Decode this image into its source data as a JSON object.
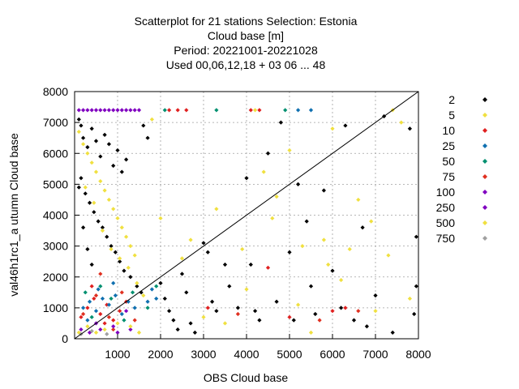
{
  "chart_data": {
    "type": "scatter",
    "title_lines": [
      "Scatterplot for   21 stations Selection: Estonia",
      "Cloud base [m]",
      "Period: 20221001-20221028",
      "Used  00,06,12,18  + 03 06 ... 48"
    ],
    "xlabel": "OBS Cloud base",
    "ylabel": "val46h1rc1_a utumn Cloud base",
    "xlim": [
      0,
      8000
    ],
    "ylim": [
      0,
      8000
    ],
    "xticks": [
      "1000",
      "2000",
      "3000",
      "4000",
      "5000",
      "6000",
      "7000",
      "8000"
    ],
    "yticks": [
      "0",
      "1000",
      "2000",
      "3000",
      "4000",
      "5000",
      "6000",
      "7000",
      "8000"
    ],
    "grid": true,
    "legend_placement": "right",
    "diagonal": [
      [
        0,
        0
      ],
      [
        8000,
        8000
      ]
    ],
    "series": [
      {
        "name": "2",
        "color": "#000000",
        "points": [
          [
            100,
            7100
          ],
          [
            150,
            6900
          ],
          [
            200,
            6500
          ],
          [
            300,
            6200
          ],
          [
            400,
            6800
          ],
          [
            500,
            6400
          ],
          [
            600,
            5900
          ],
          [
            700,
            6600
          ],
          [
            800,
            6300
          ],
          [
            900,
            5600
          ],
          [
            1000,
            6100
          ],
          [
            1100,
            5400
          ],
          [
            1200,
            5800
          ],
          [
            150,
            5200
          ],
          [
            250,
            4700
          ],
          [
            350,
            4400
          ],
          [
            450,
            4100
          ],
          [
            550,
            3800
          ],
          [
            650,
            3600
          ],
          [
            750,
            3300
          ],
          [
            850,
            3000
          ],
          [
            950,
            2800
          ],
          [
            1050,
            2500
          ],
          [
            1150,
            2200
          ],
          [
            1300,
            2000
          ],
          [
            1450,
            1700
          ],
          [
            1550,
            1500
          ],
          [
            200,
            3600
          ],
          [
            300,
            2900
          ],
          [
            400,
            2400
          ],
          [
            100,
            4900
          ],
          [
            1600,
            6900
          ],
          [
            1700,
            6500
          ],
          [
            2000,
            1800
          ],
          [
            2100,
            1300
          ],
          [
            2200,
            900
          ],
          [
            2300,
            600
          ],
          [
            2400,
            300
          ],
          [
            2500,
            2100
          ],
          [
            2600,
            1500
          ],
          [
            2700,
            500
          ],
          [
            2800,
            200
          ],
          [
            3000,
            3100
          ],
          [
            3100,
            2800
          ],
          [
            3200,
            1200
          ],
          [
            3300,
            900
          ],
          [
            3500,
            2400
          ],
          [
            3600,
            1700
          ],
          [
            3800,
            1000
          ],
          [
            4000,
            5200
          ],
          [
            4100,
            2400
          ],
          [
            4200,
            900
          ],
          [
            4300,
            600
          ],
          [
            4500,
            6000
          ],
          [
            4700,
            1200
          ],
          [
            4800,
            7000
          ],
          [
            5000,
            2800
          ],
          [
            5100,
            600
          ],
          [
            5200,
            5000
          ],
          [
            5400,
            3800
          ],
          [
            5500,
            1700
          ],
          [
            5600,
            800
          ],
          [
            5800,
            4800
          ],
          [
            6000,
            2200
          ],
          [
            6200,
            1000
          ],
          [
            6300,
            6900
          ],
          [
            6500,
            600
          ],
          [
            6700,
            3600
          ],
          [
            6800,
            400
          ],
          [
            7000,
            1400
          ],
          [
            7200,
            7200
          ],
          [
            7400,
            200
          ],
          [
            7800,
            6800
          ],
          [
            7900,
            800
          ],
          [
            7950,
            3300
          ],
          [
            7950,
            1700
          ]
        ]
      },
      {
        "name": "5",
        "color": "#f0e040",
        "points": [
          [
            100,
            6700
          ],
          [
            200,
            6300
          ],
          [
            300,
            6000
          ],
          [
            400,
            5700
          ],
          [
            500,
            5400
          ],
          [
            600,
            5100
          ],
          [
            700,
            4800
          ],
          [
            800,
            4500
          ],
          [
            900,
            4200
          ],
          [
            1000,
            3900
          ],
          [
            1100,
            3600
          ],
          [
            1200,
            3300
          ],
          [
            1300,
            3000
          ],
          [
            1400,
            2700
          ],
          [
            250,
            4900
          ],
          [
            450,
            4400
          ],
          [
            650,
            3500
          ],
          [
            850,
            2900
          ],
          [
            1050,
            2600
          ],
          [
            1250,
            2300
          ],
          [
            1450,
            1800
          ],
          [
            1600,
            1400
          ],
          [
            1800,
            7100
          ],
          [
            2000,
            3900
          ],
          [
            2500,
            2600
          ],
          [
            3000,
            700
          ],
          [
            3500,
            500
          ],
          [
            4000,
            1600
          ],
          [
            4200,
            7400
          ],
          [
            4600,
            3900
          ],
          [
            5000,
            6100
          ],
          [
            5200,
            1100
          ],
          [
            5500,
            200
          ],
          [
            5800,
            3200
          ],
          [
            6000,
            6800
          ],
          [
            6200,
            1900
          ],
          [
            6600,
            4500
          ],
          [
            7000,
            900
          ],
          [
            7400,
            7400
          ],
          [
            7600,
            7000
          ],
          [
            7800,
            1300
          ]
        ]
      },
      {
        "name": "10",
        "color": "#e02020",
        "points": [
          [
            150,
            700
          ],
          [
            300,
            1000
          ],
          [
            450,
            1300
          ],
          [
            600,
            800
          ],
          [
            750,
            1100
          ],
          [
            900,
            600
          ],
          [
            1050,
            900
          ],
          [
            1200,
            1200
          ],
          [
            400,
            1700
          ],
          [
            700,
            500
          ],
          [
            2200,
            7400
          ],
          [
            2400,
            7400
          ],
          [
            2600,
            7400
          ],
          [
            3100,
            1000
          ],
          [
            4100,
            7400
          ],
          [
            4300,
            7400
          ],
          [
            4500,
            2300
          ],
          [
            5000,
            700
          ],
          [
            6000,
            900
          ],
          [
            6300,
            1000
          ]
        ]
      },
      {
        "name": "25",
        "color": "#1070b0",
        "points": [
          [
            200,
            1000
          ],
          [
            350,
            1200
          ],
          [
            500,
            900
          ],
          [
            650,
            1300
          ],
          [
            800,
            1100
          ],
          [
            950,
            1400
          ],
          [
            1100,
            800
          ],
          [
            1250,
            1200
          ],
          [
            1400,
            1000
          ],
          [
            300,
            600
          ],
          [
            550,
            1600
          ],
          [
            900,
            1800
          ],
          [
            1700,
            1200
          ],
          [
            1800,
            1600
          ],
          [
            1900,
            1300
          ],
          [
            5200,
            7400
          ],
          [
            5500,
            7400
          ]
        ]
      },
      {
        "name": "50",
        "color": "#009070",
        "points": [
          [
            250,
            1500
          ],
          [
            400,
            700
          ],
          [
            600,
            1700
          ],
          [
            850,
            1300
          ],
          [
            1150,
            600
          ],
          [
            1350,
            1500
          ],
          [
            1700,
            1000
          ],
          [
            1900,
            1700
          ],
          [
            2100,
            7400
          ],
          [
            3300,
            7400
          ],
          [
            4900,
            7400
          ]
        ]
      },
      {
        "name": "75",
        "color": "#e03020",
        "points": [
          [
            200,
            800
          ],
          [
            500,
            1400
          ],
          [
            800,
            700
          ],
          [
            1100,
            1500
          ],
          [
            1400,
            600
          ],
          [
            600,
            2100
          ],
          [
            900,
            300
          ],
          [
            3800,
            800
          ],
          [
            5700,
            600
          ],
          [
            6600,
            900
          ]
        ]
      },
      {
        "name": "100",
        "color": "#8000c0",
        "points": [
          [
            100,
            7400
          ],
          [
            200,
            7400
          ],
          [
            300,
            7400
          ],
          [
            400,
            7400
          ],
          [
            500,
            7400
          ],
          [
            600,
            7400
          ],
          [
            700,
            7400
          ],
          [
            800,
            7400
          ],
          [
            900,
            7400
          ],
          [
            1000,
            7400
          ],
          [
            1100,
            7400
          ],
          [
            1200,
            7400
          ],
          [
            1300,
            7400
          ],
          [
            1400,
            7400
          ],
          [
            1500,
            7400
          ],
          [
            500,
            500
          ],
          [
            900,
            400
          ],
          [
            1200,
            900
          ]
        ]
      },
      {
        "name": "250",
        "color": "#8000c0",
        "points": [
          [
            150,
            300
          ],
          [
            350,
            200
          ],
          [
            600,
            300
          ],
          [
            1000,
            200
          ],
          [
            1300,
            300
          ]
        ]
      },
      {
        "name": "500",
        "color": "#f0e040",
        "points": [
          [
            100,
            200
          ],
          [
            300,
            400
          ],
          [
            500,
            200
          ],
          [
            700,
            300
          ],
          [
            1000,
            500
          ],
          [
            1300,
            400
          ],
          [
            1500,
            200
          ],
          [
            2700,
            3200
          ],
          [
            3300,
            4200
          ],
          [
            3900,
            2900
          ],
          [
            4400,
            5400
          ],
          [
            4700,
            4600
          ],
          [
            5300,
            3000
          ],
          [
            5900,
            2400
          ],
          [
            6400,
            2900
          ],
          [
            6900,
            3800
          ],
          [
            7300,
            2700
          ]
        ]
      },
      {
        "name": "750",
        "color": "#a0a0a0",
        "points": [
          [
            150,
            150
          ],
          [
            400,
            250
          ],
          [
            750,
            150
          ]
        ]
      }
    ]
  }
}
